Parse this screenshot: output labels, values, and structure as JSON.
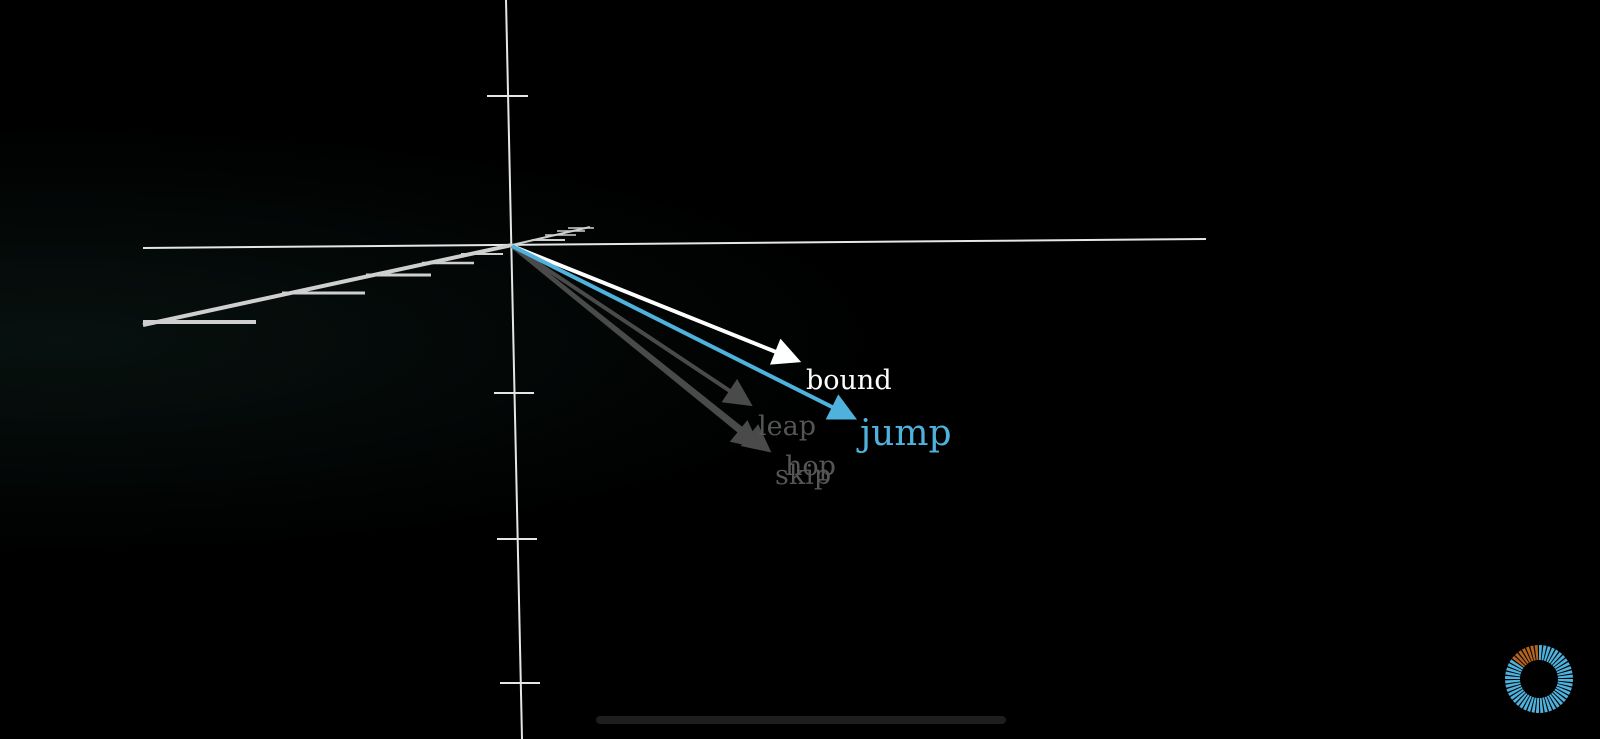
{
  "words": {
    "bound": "bound",
    "jump": "jump",
    "leap": "leap",
    "hop": "hop",
    "skip": "skip"
  },
  "colors": {
    "background": "#000000",
    "axis": "#e6e6e6",
    "jump_vector": "#4fb2dd",
    "bound_vector": "#ffffff",
    "faded_vector": "#4a4a4a",
    "faded_label": "#555555",
    "progress_blue": "#4fb2dd",
    "progress_orange": "#b5631f"
  },
  "progress_indicator": {
    "icon": "progress-ring-icon",
    "filled_fraction": 0.15
  }
}
